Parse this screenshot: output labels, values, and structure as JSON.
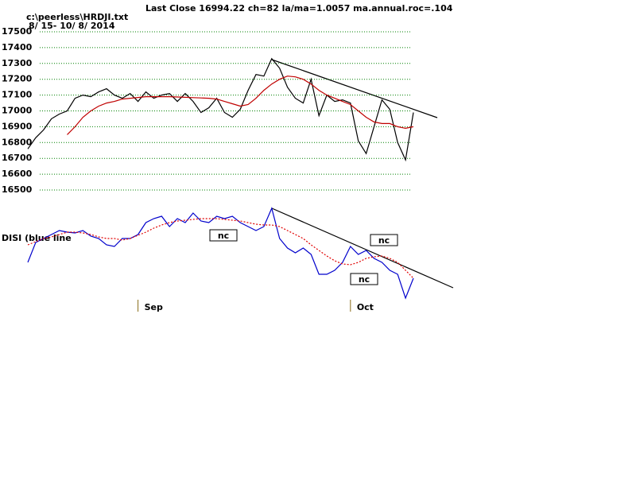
{
  "chart_data": [
    {
      "type": "line",
      "title": "Last Close 16994.22 ch=82  la/ma=1.0057 ma.annual.roc=.104",
      "subtitle": "c:\\peerless\\HRDJI.txt",
      "date_range": "8/ 15- 10/ 8/ 2014",
      "ylim": [
        16500,
        17500
      ],
      "yticks": [
        16500,
        16600,
        16700,
        16800,
        16900,
        17000,
        17100,
        17200,
        17300,
        17400,
        17500
      ],
      "grid": true,
      "series": [
        {
          "color": "#000000",
          "values": [
            16760,
            16830,
            16880,
            16950,
            16980,
            17000,
            17080,
            17100,
            17090,
            17120,
            17140,
            17100,
            17080,
            17110,
            17060,
            17120,
            17080,
            17100,
            17110,
            17060,
            17110,
            17060,
            16990,
            17020,
            17080,
            16990,
            16960,
            17010,
            17130,
            17230,
            17220,
            17330,
            17270,
            17150,
            17080,
            17050,
            17200,
            16970,
            17100,
            17060,
            17070,
            17050,
            16810,
            16730,
            16900,
            17070,
            17010,
            16800,
            16690,
            16990
          ]
        },
        {
          "color": "#c00000",
          "values": [
            null,
            null,
            null,
            null,
            null,
            16850,
            16900,
            16960,
            17000,
            17030,
            17050,
            17060,
            17075,
            17080,
            17085,
            17090,
            17090,
            17090,
            17090,
            17088,
            17086,
            17084,
            17082,
            17080,
            17075,
            17060,
            17045,
            17030,
            17040,
            17080,
            17130,
            17170,
            17200,
            17220,
            17215,
            17200,
            17170,
            17130,
            17100,
            17080,
            17060,
            17040,
            17000,
            16960,
            16930,
            16920,
            16920,
            16900,
            16890,
            16900
          ]
        }
      ]
    },
    {
      "type": "line",
      "label": "DISI (blue line",
      "categories": [
        null,
        null,
        null,
        null,
        null,
        null,
        null,
        null,
        null,
        null,
        null,
        null,
        null,
        null,
        "Sep",
        null,
        null,
        null,
        null,
        null,
        null,
        null,
        null,
        null,
        null,
        null,
        null,
        null,
        null,
        null,
        null,
        null,
        null,
        null,
        null,
        null,
        null,
        null,
        null,
        null,
        null,
        "Oct",
        null,
        null,
        null,
        null,
        null,
        null,
        null,
        null
      ],
      "ylim": [
        0,
        130
      ],
      "annotations": [
        "nc",
        "nc",
        "nc"
      ],
      "series": [
        {
          "color": "#0000cc",
          "values": [
            50,
            75,
            80,
            85,
            90,
            88,
            87,
            90,
            83,
            80,
            72,
            70,
            80,
            80,
            85,
            100,
            105,
            108,
            95,
            105,
            100,
            112,
            102,
            100,
            108,
            105,
            108,
            100,
            95,
            90,
            95,
            118,
            80,
            68,
            62,
            68,
            60,
            35,
            35,
            40,
            50,
            70,
            60,
            65,
            55,
            50,
            40,
            35,
            5,
            30
          ]
        },
        {
          "color": "#e00000",
          "values": [
            72,
            76,
            80,
            82,
            85,
            88,
            88,
            87,
            85,
            82,
            80,
            80,
            78,
            80,
            84,
            88,
            93,
            97,
            100,
            102,
            103,
            104,
            105,
            105,
            105,
            104,
            103,
            102,
            100,
            98,
            97,
            97,
            95,
            90,
            85,
            80,
            72,
            65,
            58,
            52,
            48,
            47,
            50,
            55,
            57,
            58,
            55,
            50,
            40,
            30
          ]
        }
      ]
    }
  ]
}
